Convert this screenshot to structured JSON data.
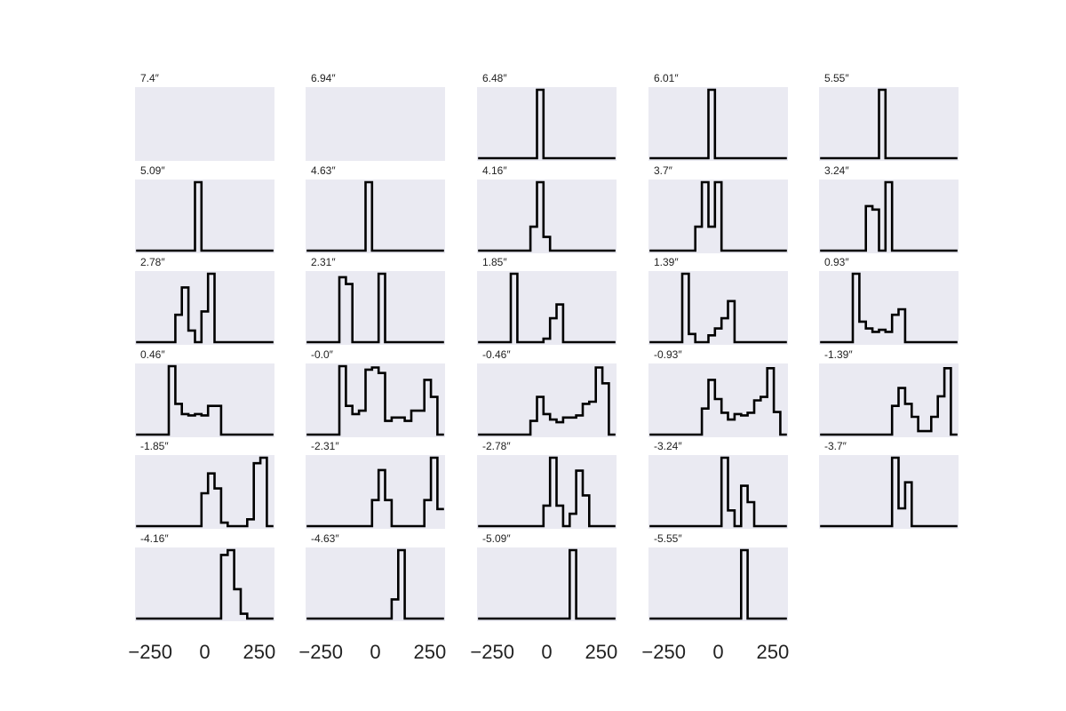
{
  "figure": {
    "background": "#ffffff"
  },
  "style": {
    "panel_bg": "#eaeaf2",
    "line_color": "#000000"
  },
  "chart_data": {
    "type": "line",
    "drawstyle": "steps",
    "layout": {
      "rows": 6,
      "cols": 5
    },
    "xlim": [
      -320,
      320
    ],
    "x_ticks": [
      -250,
      0,
      250
    ],
    "x_tick_labels": [
      "−250",
      "0",
      "250"
    ],
    "grid": false,
    "x": [
      -300,
      -270,
      -240,
      -210,
      -180,
      -150,
      -120,
      -90,
      -60,
      -30,
      0,
      30,
      60,
      90,
      120,
      150,
      180,
      210,
      240,
      270,
      300
    ],
    "panels": [
      {
        "label": "7.4″",
        "values": []
      },
      {
        "label": "6.94″",
        "values": []
      },
      {
        "label": "6.48″",
        "values": [
          0,
          0,
          0,
          0,
          0,
          0,
          0,
          0,
          0,
          1,
          0,
          0,
          0,
          0,
          0,
          0,
          0,
          0,
          0,
          0,
          0
        ]
      },
      {
        "label": "6.01″",
        "values": [
          0,
          0,
          0,
          0,
          0,
          0,
          0,
          0,
          0,
          1,
          0,
          0,
          0,
          0,
          0,
          0,
          0,
          0,
          0,
          0,
          0
        ]
      },
      {
        "label": "5.55″",
        "values": [
          0,
          0,
          0,
          0,
          0,
          0,
          0,
          0,
          0,
          1,
          0,
          0,
          0,
          0,
          0,
          0,
          0,
          0,
          0,
          0,
          0
        ]
      },
      {
        "label": "5.09″",
        "values": [
          0,
          0,
          0,
          0,
          0,
          0,
          0,
          0,
          0,
          1,
          0,
          0,
          0,
          0,
          0,
          0,
          0,
          0,
          0,
          0,
          0
        ]
      },
      {
        "label": "4.63″",
        "values": [
          0,
          0,
          0,
          0,
          0,
          0,
          0,
          0,
          0,
          1,
          0,
          0,
          0,
          0,
          0,
          0,
          0,
          0,
          0,
          0,
          0
        ]
      },
      {
        "label": "4.16″",
        "values": [
          0,
          0,
          0,
          0,
          0,
          0,
          0,
          0,
          0.35,
          1,
          0.2,
          0,
          0,
          0,
          0,
          0,
          0,
          0,
          0,
          0,
          0
        ]
      },
      {
        "label": "3.7″",
        "values": [
          0,
          0,
          0,
          0,
          0,
          0,
          0,
          0.35,
          1,
          0.35,
          1,
          0,
          0,
          0,
          0,
          0,
          0,
          0,
          0,
          0,
          0
        ]
      },
      {
        "label": "3.24″",
        "values": [
          0,
          0,
          0,
          0,
          0,
          0,
          0,
          0.65,
          0.6,
          0,
          1,
          0,
          0,
          0,
          0,
          0,
          0,
          0,
          0,
          0,
          0
        ]
      },
      {
        "label": "2.78″",
        "values": [
          0,
          0,
          0,
          0,
          0,
          0,
          0.4,
          0.8,
          0.17,
          0,
          0.45,
          1,
          0,
          0,
          0,
          0,
          0,
          0,
          0,
          0,
          0
        ]
      },
      {
        "label": "2.31″",
        "values": [
          0,
          0,
          0,
          0,
          0,
          0.95,
          0.85,
          0,
          0,
          0,
          0,
          1,
          0,
          0,
          0,
          0,
          0,
          0,
          0,
          0,
          0
        ]
      },
      {
        "label": "1.85″",
        "values": [
          0,
          0,
          0,
          0,
          0,
          1,
          0,
          0,
          0,
          0,
          0.05,
          0.35,
          0.55,
          0,
          0,
          0,
          0,
          0,
          0,
          0,
          0
        ]
      },
      {
        "label": "1.39″",
        "values": [
          0,
          0,
          0,
          0,
          0,
          1,
          0.12,
          0,
          0,
          0.1,
          0.2,
          0.35,
          0.6,
          0,
          0,
          0,
          0,
          0,
          0,
          0,
          0
        ]
      },
      {
        "label": "0.93″",
        "values": [
          0,
          0,
          0,
          0,
          0,
          1,
          0.3,
          0.2,
          0.15,
          0.18,
          0.15,
          0.4,
          0.48,
          0,
          0,
          0,
          0,
          0,
          0,
          0,
          0
        ]
      },
      {
        "label": "0.46″",
        "values": [
          0,
          0,
          0,
          0,
          0,
          1,
          0.45,
          0.3,
          0.28,
          0.3,
          0.28,
          0.42,
          0.42,
          0,
          0,
          0,
          0,
          0,
          0,
          0,
          0
        ]
      },
      {
        "label": "-0.0″",
        "values": [
          0,
          0,
          0,
          0,
          0,
          1,
          0.42,
          0.3,
          0.35,
          0.95,
          0.98,
          0.9,
          0.2,
          0.25,
          0.25,
          0.2,
          0.35,
          0.35,
          0.8,
          0.55,
          0
        ]
      },
      {
        "label": "-0.46″",
        "values": [
          0,
          0,
          0,
          0,
          0,
          0,
          0,
          0,
          0.2,
          0.55,
          0.3,
          0.22,
          0.18,
          0.25,
          0.25,
          0.28,
          0.45,
          0.48,
          0.98,
          0.75,
          0
        ]
      },
      {
        "label": "-0.93″",
        "values": [
          0,
          0,
          0,
          0,
          0,
          0,
          0,
          0,
          0.38,
          0.8,
          0.52,
          0.32,
          0.22,
          0.3,
          0.28,
          0.32,
          0.5,
          0.55,
          0.97,
          0.33,
          0
        ]
      },
      {
        "label": "-1.39″",
        "values": [
          0,
          0,
          0,
          0,
          0,
          0,
          0,
          0,
          0,
          0,
          0,
          0.42,
          0.68,
          0.45,
          0.26,
          0.05,
          0.05,
          0.26,
          0.56,
          0.97,
          0
        ]
      },
      {
        "label": "-1.85″",
        "values": [
          0,
          0,
          0,
          0,
          0,
          0,
          0,
          0,
          0,
          0,
          0.48,
          0.77,
          0.55,
          0.05,
          0,
          0,
          0,
          0.1,
          0.92,
          1,
          0
        ]
      },
      {
        "label": "-2.31″",
        "values": [
          0,
          0,
          0,
          0,
          0,
          0,
          0,
          0,
          0,
          0,
          0.38,
          0.82,
          0.38,
          0,
          0,
          0,
          0,
          0,
          0.38,
          1,
          0.25
        ]
      },
      {
        "label": "-2.78″",
        "values": [
          0,
          0,
          0,
          0,
          0,
          0,
          0,
          0,
          0,
          0,
          0.3,
          1,
          0.3,
          0,
          0.18,
          0.81,
          0.45,
          0,
          0,
          0,
          0
        ]
      },
      {
        "label": "-3.24″",
        "values": [
          0,
          0,
          0,
          0,
          0,
          0,
          0,
          0,
          0,
          0,
          0,
          1,
          0.23,
          0,
          0.59,
          0.35,
          0,
          0,
          0,
          0,
          0
        ]
      },
      {
        "label": "-3.7″",
        "values": [
          0,
          0,
          0,
          0,
          0,
          0,
          0,
          0,
          0,
          0,
          0,
          1,
          0.26,
          0.64,
          0,
          0,
          0,
          0,
          0,
          0,
          0
        ]
      },
      {
        "label": "-4.16″",
        "values": [
          0,
          0,
          0,
          0,
          0,
          0,
          0,
          0,
          0,
          0,
          0,
          0,
          0,
          0.93,
          1,
          0.43,
          0.07,
          0,
          0,
          0,
          0
        ]
      },
      {
        "label": "-4.63″",
        "values": [
          0,
          0,
          0,
          0,
          0,
          0,
          0,
          0,
          0,
          0,
          0,
          0,
          0,
          0.28,
          1,
          0,
          0,
          0,
          0,
          0,
          0
        ]
      },
      {
        "label": "-5.09″",
        "values": [
          0,
          0,
          0,
          0,
          0,
          0,
          0,
          0,
          0,
          0,
          0,
          0,
          0,
          0,
          1,
          0,
          0,
          0,
          0,
          0,
          0
        ]
      },
      {
        "label": "-5.55″",
        "values": [
          0,
          0,
          0,
          0,
          0,
          0,
          0,
          0,
          0,
          0,
          0,
          0,
          0,
          0,
          1,
          0,
          0,
          0,
          0,
          0,
          0
        ]
      }
    ]
  }
}
